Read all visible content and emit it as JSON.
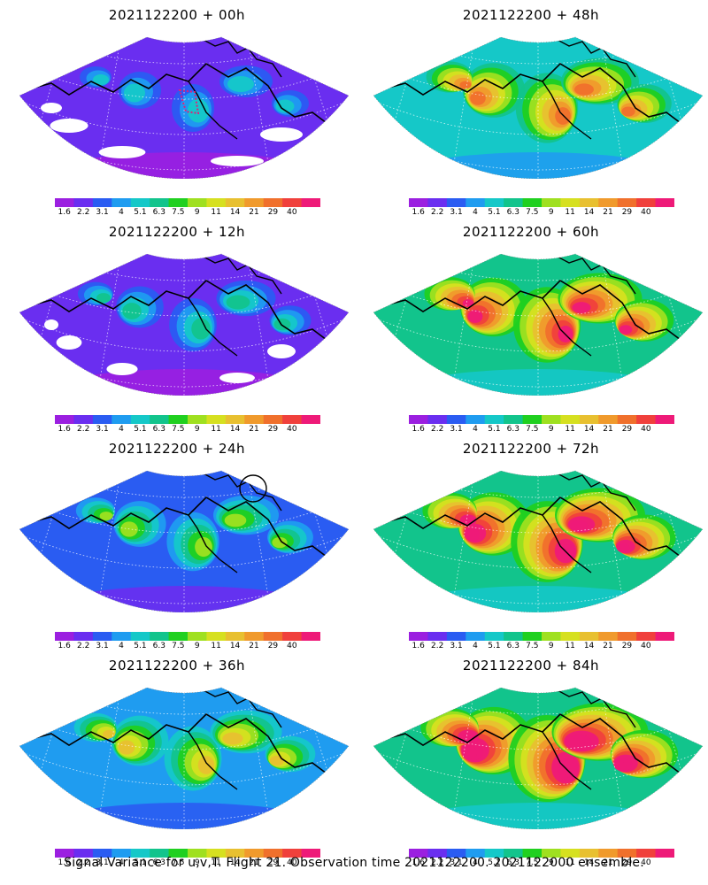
{
  "panels": [
    {
      "title": "2021122200 + 00h",
      "level": 0
    },
    {
      "title": "2021122200 + 48h",
      "level": 4
    },
    {
      "title": "2021122200 + 12h",
      "level": 1
    },
    {
      "title": "2021122200 + 60h",
      "level": 5
    },
    {
      "title": "2021122200 + 24h",
      "level": 2
    },
    {
      "title": "2021122200 + 72h",
      "level": 6
    },
    {
      "title": "2021122200 + 36h",
      "level": 3
    },
    {
      "title": "2021122200 + 84h",
      "level": 7
    }
  ],
  "colorbar": {
    "colors": [
      "#9b1fe0",
      "#6a2ef0",
      "#2a5cf2",
      "#1f9cf0",
      "#15c8c8",
      "#12c48c",
      "#20d020",
      "#9fe020",
      "#d6e020",
      "#e8c030",
      "#f09a2c",
      "#f0702c",
      "#f0403c",
      "#ee1a78"
    ],
    "labels": [
      "1.6",
      "2.2",
      "3.1",
      "4",
      "5.1",
      "6.3",
      "7.5",
      "9",
      "11",
      "14",
      "21",
      "29",
      "40"
    ]
  },
  "footer": "Signal Variance for u,v,T. Flight 21. Observation time 2021122200. 2021122000 ensemble."
}
